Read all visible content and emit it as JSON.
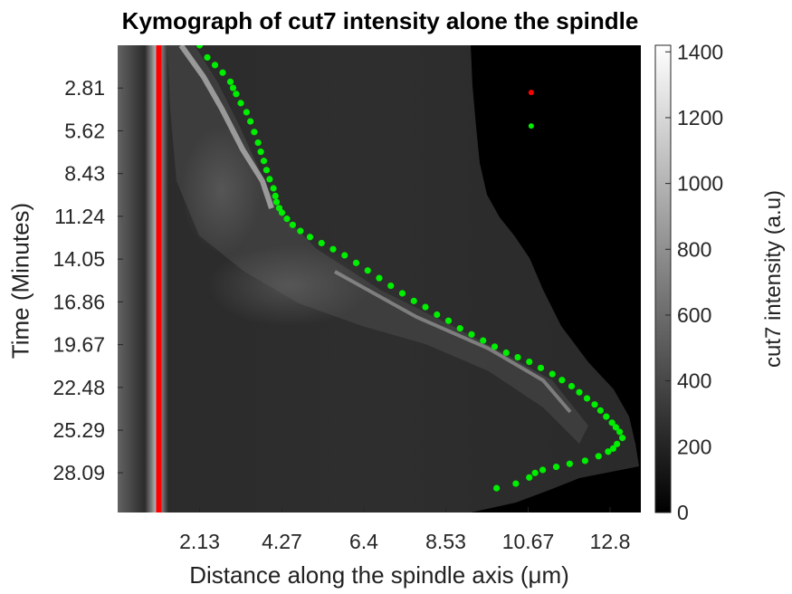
{
  "chart_data": {
    "type": "heatmap",
    "title": "Kymograph of cut7 intensity alone the spindle",
    "xlabel": "Distance along the spindle axis (μm)",
    "ylabel": "Time (Minutes)",
    "xticks": [
      "2.13",
      "4.27",
      "6.4",
      "8.53",
      "10.67",
      "12.8"
    ],
    "yticks": [
      "2.81",
      "5.62",
      "8.43",
      "11.24",
      "14.05",
      "16.86",
      "19.67",
      "22.48",
      "25.29",
      "28.09"
    ],
    "xlim": [
      0,
      13.6
    ],
    "ylim": [
      0,
      30.7
    ],
    "colormap": "gray",
    "colorbar": {
      "label": "cut7 intensity (a.u)",
      "range": [
        0,
        1420
      ],
      "ticks": [
        "0",
        "200",
        "400",
        "600",
        "800",
        "1000",
        "1200",
        "1400"
      ]
    },
    "series": [
      {
        "color": "#ff0000",
        "style": "vertical-line",
        "x": [
          1.07,
          1.07
        ],
        "y": [
          0,
          30.7
        ]
      },
      {
        "color": "#00ee00",
        "style": "dots",
        "x": [
          2.13,
          2.33,
          2.53,
          2.73,
          2.93,
          3.0,
          3.08,
          3.2,
          3.35,
          3.45,
          3.55,
          3.65,
          3.72,
          3.8,
          3.87,
          3.95,
          4.05,
          4.1,
          4.13,
          4.2,
          4.27,
          4.4,
          4.55,
          4.75,
          5.0,
          5.3,
          5.6,
          5.9,
          6.2,
          6.5,
          6.8,
          7.1,
          7.4,
          7.7,
          8.0,
          8.3,
          8.6,
          8.9,
          9.2,
          9.5,
          9.8,
          10.1,
          10.4,
          10.7,
          11.0,
          11.3,
          11.55,
          11.8,
          12.0,
          12.2,
          12.4,
          12.55,
          12.7,
          12.85,
          12.95,
          13.05,
          13.12,
          12.98,
          12.88,
          12.75,
          12.5,
          12.15,
          11.75,
          11.4,
          11.05,
          10.85,
          10.7,
          10.35,
          9.85
        ],
        "y": [
          0.0,
          0.8,
          1.3,
          1.8,
          2.4,
          2.8,
          3.2,
          3.8,
          4.4,
          5.0,
          5.7,
          6.4,
          7.0,
          7.6,
          8.2,
          8.8,
          9.4,
          9.9,
          10.3,
          10.7,
          11.0,
          11.4,
          11.8,
          12.2,
          12.6,
          13.0,
          13.4,
          13.8,
          14.3,
          14.8,
          15.3,
          15.8,
          16.3,
          16.8,
          17.2,
          17.7,
          18.1,
          18.6,
          19.0,
          19.4,
          19.8,
          20.2,
          20.5,
          20.8,
          21.2,
          21.6,
          22.0,
          22.4,
          22.8,
          23.2,
          23.6,
          24.0,
          24.4,
          24.8,
          25.1,
          25.4,
          25.8,
          26.2,
          26.5,
          26.7,
          27.0,
          27.3,
          27.5,
          27.7,
          27.9,
          28.1,
          28.4,
          28.8,
          29.1
        ]
      }
    ],
    "annotations": [
      {
        "color": "#ff0000",
        "x": 10.75,
        "y": 3.1
      },
      {
        "color": "#00ee00",
        "x": 10.75,
        "y": 5.3
      }
    ]
  }
}
